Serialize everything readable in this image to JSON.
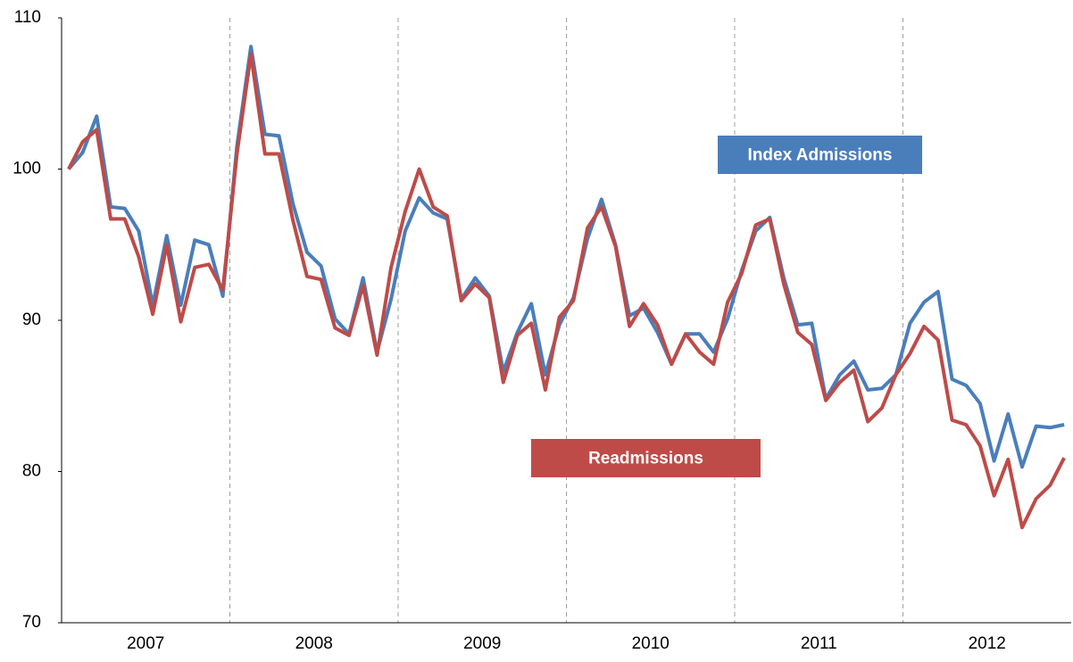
{
  "chart_data": {
    "type": "line",
    "categories": [
      null,
      null,
      null,
      null,
      null,
      null,
      "2007",
      null,
      null,
      null,
      null,
      null,
      null,
      null,
      null,
      null,
      null,
      null,
      "2008",
      null,
      null,
      null,
      null,
      null,
      null,
      null,
      null,
      null,
      null,
      null,
      "2009",
      null,
      null,
      null,
      null,
      null,
      null,
      null,
      null,
      null,
      null,
      null,
      "2010",
      null,
      null,
      null,
      null,
      null,
      null,
      null,
      null,
      null,
      null,
      null,
      "2011",
      null,
      null,
      null,
      null,
      null,
      null,
      null,
      null,
      null,
      null,
      null,
      "2012",
      null,
      null,
      null,
      null,
      null
    ],
    "series": [
      {
        "name": "Index Admissions",
        "color": "#4a7ebb",
        "values": [
          100,
          101.1,
          103.5,
          97.5,
          97.4,
          95.9,
          91.0,
          95.6,
          91.0,
          95.3,
          95.0,
          91.6,
          101.5,
          108.1,
          102.3,
          102.2,
          97.7,
          94.5,
          93.6,
          90.1,
          89.1,
          92.8,
          87.9,
          91.4,
          95.9,
          98.1,
          97.1,
          96.7,
          91.4,
          92.8,
          91.6,
          86.6,
          89.2,
          91.1,
          86.4,
          89.7,
          91.5,
          95.4,
          98.0,
          95.0,
          90.3,
          90.8,
          89.2,
          87.1,
          89.1,
          89.1,
          87.9,
          90.1,
          93.3,
          95.9,
          96.8,
          92.8,
          89.7,
          89.8,
          84.8,
          86.4,
          87.3,
          85.4,
          85.5,
          86.4,
          89.8,
          91.2,
          91.9,
          86.1,
          85.7,
          84.5,
          80.7,
          83.8,
          80.3,
          83.0,
          82.9,
          83.1
        ]
      },
      {
        "name": "Readmissions",
        "color": "#be4b48",
        "values": [
          100,
          101.8,
          102.6,
          96.7,
          96.7,
          94.2,
          90.4,
          95.0,
          89.9,
          93.5,
          93.7,
          92.0,
          101.0,
          107.6,
          101.0,
          101.0,
          96.6,
          92.9,
          92.7,
          89.5,
          89.0,
          92.3,
          87.7,
          93.5,
          97.2,
          100.0,
          97.5,
          96.9,
          91.3,
          92.4,
          91.5,
          85.9,
          89.0,
          89.8,
          85.4,
          90.2,
          91.3,
          96.1,
          97.5,
          94.9,
          89.6,
          91.1,
          89.7,
          87.1,
          89.1,
          87.9,
          87.1,
          91.2,
          93.1,
          96.3,
          96.7,
          92.4,
          89.2,
          88.4,
          84.7,
          85.9,
          86.7,
          83.3,
          84.2,
          86.4,
          87.8,
          89.6,
          88.7,
          83.4,
          83.1,
          81.7,
          78.4,
          80.8,
          76.3,
          78.2,
          79.1,
          80.9
        ]
      }
    ],
    "ylim": [
      70,
      110
    ],
    "yticks": [
      70,
      80,
      90,
      100,
      110
    ],
    "grid": false,
    "group_dividers": true
  }
}
